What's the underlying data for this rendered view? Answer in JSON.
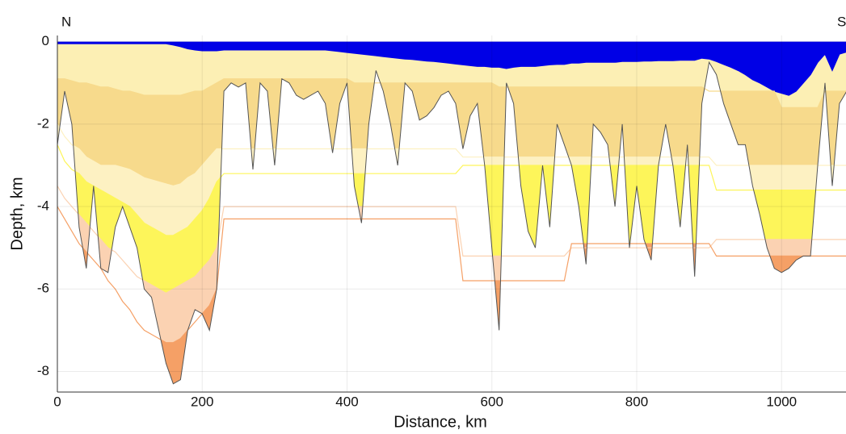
{
  "chart_data": {
    "type": "profile",
    "left_label": "N",
    "right_label": "S",
    "xlabel": "Distance, km",
    "ylabel": "Depth, km",
    "xlim": [
      0,
      1089
    ],
    "ylim": [
      -8.5,
      0.15
    ],
    "xticks": [
      0,
      200,
      400,
      600,
      800,
      1000
    ],
    "yticks": [
      0,
      -2,
      -4,
      -6,
      -8
    ],
    "grid": true,
    "water_color": "#0000e6",
    "x": [
      0,
      10,
      20,
      30,
      40,
      50,
      60,
      70,
      80,
      90,
      100,
      110,
      120,
      130,
      140,
      150,
      160,
      170,
      180,
      190,
      200,
      210,
      220,
      230,
      240,
      250,
      260,
      270,
      280,
      290,
      300,
      310,
      320,
      330,
      340,
      350,
      360,
      370,
      380,
      390,
      400,
      410,
      420,
      430,
      440,
      450,
      460,
      470,
      480,
      490,
      500,
      510,
      520,
      530,
      540,
      550,
      560,
      570,
      580,
      590,
      600,
      610,
      620,
      630,
      640,
      650,
      660,
      670,
      680,
      690,
      700,
      710,
      720,
      730,
      740,
      750,
      760,
      770,
      780,
      790,
      800,
      810,
      820,
      830,
      840,
      850,
      860,
      870,
      880,
      890,
      900,
      910,
      920,
      930,
      940,
      950,
      960,
      970,
      980,
      990,
      1000,
      1010,
      1020,
      1030,
      1040,
      1050,
      1060,
      1070,
      1080,
      1090
    ],
    "series": [
      {
        "color": "#fcefb4",
        "values": [
          -0.05,
          -0.05,
          -0.05,
          -0.05,
          -0.05,
          -0.05,
          -0.05,
          -0.05,
          -0.05,
          -0.05,
          -0.05,
          -0.05,
          -0.05,
          -0.05,
          -0.05,
          -0.05,
          -0.08,
          -0.12,
          -0.17,
          -0.2,
          -0.22,
          -0.22,
          -0.22,
          -0.2,
          -0.2,
          -0.2,
          -0.2,
          -0.2,
          -0.2,
          -0.2,
          -0.2,
          -0.2,
          -0.2,
          -0.2,
          -0.2,
          -0.2,
          -0.2,
          -0.2,
          -0.22,
          -0.24,
          -0.26,
          -0.28,
          -0.3,
          -0.32,
          -0.34,
          -0.36,
          -0.38,
          -0.4,
          -0.42,
          -0.43,
          -0.45,
          -0.47,
          -0.48,
          -0.5,
          -0.52,
          -0.54,
          -0.56,
          -0.58,
          -0.6,
          -0.6,
          -0.62,
          -0.62,
          -0.65,
          -0.62,
          -0.6,
          -0.6,
          -0.6,
          -0.58,
          -0.56,
          -0.55,
          -0.55,
          -0.52,
          -0.52,
          -0.5,
          -0.5,
          -0.5,
          -0.5,
          -0.5,
          -0.48,
          -0.48,
          -0.48,
          -0.47,
          -0.47,
          -0.46,
          -0.46,
          -0.46,
          -0.45,
          -0.45,
          -0.45,
          -0.4,
          -0.42,
          -0.48,
          -0.55,
          -0.62,
          -0.7,
          -0.8,
          -0.92,
          -1.0,
          -1.1,
          -1.2,
          -1.25,
          -1.3,
          -1.2,
          -1.0,
          -0.8,
          -0.5,
          -0.3,
          -0.7,
          -0.3,
          -0.25
        ]
      },
      {
        "color": "#f7da8c",
        "values": [
          -0.9,
          -0.9,
          -0.95,
          -1,
          -1,
          -1.05,
          -1.1,
          -1.1,
          -1.15,
          -1.2,
          -1.2,
          -1.25,
          -1.3,
          -1.3,
          -1.3,
          -1.3,
          -1.3,
          -1.3,
          -1.25,
          -1.2,
          -1.2,
          -1.1,
          -1.0,
          -0.9,
          -0.9,
          -0.9,
          -0.9,
          -0.9,
          -0.9,
          -0.9,
          -0.9,
          -0.9,
          -0.9,
          -0.9,
          -0.9,
          -0.9,
          -0.9,
          -0.9,
          -0.9,
          -0.9,
          -0.9,
          -1.0,
          -1.0,
          -1.0,
          -1.0,
          -1.0,
          -1.0,
          -1.0,
          -1.0,
          -1.0,
          -1.0,
          -1.0,
          -1.0,
          -1.0,
          -1.0,
          -1.0,
          -1.0,
          -1.0,
          -1.0,
          -1.0,
          -1.0,
          -1.1,
          -1.1,
          -1.1,
          -1.1,
          -1.1,
          -1.1,
          -1.1,
          -1.1,
          -1.1,
          -1.1,
          -1.1,
          -1.1,
          -1.1,
          -1.1,
          -1.1,
          -1.1,
          -1.1,
          -1.1,
          -1.1,
          -1.1,
          -1.1,
          -1.1,
          -1.1,
          -1.1,
          -1.1,
          -1.1,
          -1.1,
          -1.1,
          -1.1,
          -1.2,
          -1.2,
          -1.2,
          -1.2,
          -1.2,
          -1.2,
          -1.2,
          -1.2,
          -1.2,
          -1.2,
          -1.6,
          -1.6,
          -1.6,
          -1.6,
          -1.6,
          -1.6,
          -1.2,
          -1.2,
          -1.2,
          -1.2
        ]
      },
      {
        "color": "#fdf1c2",
        "values": [
          -2,
          -2.3,
          -2.5,
          -2.6,
          -2.8,
          -2.9,
          -3,
          -3,
          -3,
          -3.05,
          -3.1,
          -3.2,
          -3.3,
          -3.35,
          -3.4,
          -3.45,
          -3.5,
          -3.45,
          -3.3,
          -3.2,
          -3.0,
          -2.8,
          -2.6,
          -2.6,
          -2.6,
          -2.6,
          -2.6,
          -2.6,
          -2.6,
          -2.6,
          -2.6,
          -2.6,
          -2.6,
          -2.6,
          -2.6,
          -2.6,
          -2.6,
          -2.6,
          -2.6,
          -2.6,
          -2.6,
          -2.6,
          -2.6,
          -2.6,
          -2.6,
          -2.6,
          -2.6,
          -2.6,
          -2.6,
          -2.6,
          -2.6,
          -2.6,
          -2.6,
          -2.6,
          -2.6,
          -2.6,
          -2.8,
          -2.8,
          -2.8,
          -2.8,
          -2.8,
          -2.8,
          -2.8,
          -2.8,
          -2.8,
          -2.8,
          -2.8,
          -2.8,
          -2.8,
          -2.8,
          -2.8,
          -2.8,
          -2.8,
          -2.8,
          -2.8,
          -2.8,
          -2.8,
          -2.8,
          -2.8,
          -2.8,
          -2.8,
          -2.8,
          -2.8,
          -2.8,
          -2.8,
          -2.8,
          -2.8,
          -2.8,
          -2.8,
          -2.8,
          -2.8,
          -3.0,
          -3.0,
          -3.0,
          -3.0,
          -3.0,
          -3.0,
          -3.0,
          -3.0,
          -3.0,
          -3.0,
          -3.0,
          -3.0,
          -3.0,
          -3.0,
          -3.0,
          -3.0,
          -3.0,
          -3.0,
          -3.0
        ]
      },
      {
        "color": "#fdf55a",
        "values": [
          -2.5,
          -2.9,
          -3.1,
          -3.2,
          -3.4,
          -3.5,
          -3.6,
          -3.7,
          -3.8,
          -3.9,
          -4.0,
          -4.2,
          -4.4,
          -4.5,
          -4.6,
          -4.7,
          -4.7,
          -4.6,
          -4.5,
          -4.3,
          -4.1,
          -3.8,
          -3.4,
          -3.2,
          -3.2,
          -3.2,
          -3.2,
          -3.2,
          -3.2,
          -3.2,
          -3.2,
          -3.2,
          -3.2,
          -3.2,
          -3.2,
          -3.2,
          -3.2,
          -3.2,
          -3.2,
          -3.2,
          -3.2,
          -3.2,
          -3.2,
          -3.2,
          -3.2,
          -3.2,
          -3.2,
          -3.2,
          -3.2,
          -3.2,
          -3.2,
          -3.2,
          -3.2,
          -3.2,
          -3.2,
          -3.2,
          -3.0,
          -3.0,
          -3.0,
          -3.0,
          -3.0,
          -3.0,
          -3.0,
          -3.0,
          -3.0,
          -3.0,
          -3.0,
          -3.0,
          -3.0,
          -3.0,
          -3.0,
          -3.0,
          -3.0,
          -3.0,
          -3.0,
          -3.0,
          -3.0,
          -3.0,
          -3.0,
          -3.0,
          -3.0,
          -3.0,
          -3.0,
          -3.0,
          -3.0,
          -3.0,
          -3.0,
          -3.0,
          -3.0,
          -3.0,
          -3.0,
          -3.6,
          -3.6,
          -3.6,
          -3.6,
          -3.6,
          -3.6,
          -3.6,
          -3.6,
          -3.6,
          -3.6,
          -3.6,
          -3.6,
          -3.6,
          -3.6,
          -3.6,
          -3.6,
          -3.6,
          -3.6,
          -3.6
        ]
      },
      {
        "color": "#fbd2b2",
        "values": [
          -3.5,
          -3.8,
          -4.0,
          -4.2,
          -4.4,
          -4.6,
          -4.8,
          -5.0,
          -5.1,
          -5.3,
          -5.5,
          -5.7,
          -5.8,
          -5.9,
          -6.0,
          -6.1,
          -6.0,
          -5.9,
          -5.8,
          -5.7,
          -5.5,
          -5.3,
          -5.0,
          -4.0,
          -4.0,
          -4.0,
          -4.0,
          -4.0,
          -4.0,
          -4.0,
          -4.0,
          -4.0,
          -4.0,
          -4.0,
          -4.0,
          -4.0,
          -4.0,
          -4.0,
          -4.0,
          -4.0,
          -4.0,
          -4.0,
          -4.0,
          -4.0,
          -4.0,
          -4.0,
          -4.0,
          -4.0,
          -4.0,
          -4.0,
          -4.0,
          -4.0,
          -4.0,
          -4.0,
          -4.0,
          -4.0,
          -5.2,
          -5.2,
          -5.2,
          -5.2,
          -5.2,
          -5.2,
          -5.2,
          -5.2,
          -5.2,
          -5.2,
          -5.2,
          -5.2,
          -5.2,
          -5.2,
          -5.2,
          -5.0,
          -5.0,
          -5.0,
          -5.0,
          -5.0,
          -5.0,
          -5.0,
          -5.0,
          -5.0,
          -5.0,
          -5.0,
          -5.0,
          -5.0,
          -5.0,
          -5.0,
          -5.0,
          -5.0,
          -5.0,
          -5.0,
          -5.0,
          -4.8,
          -4.8,
          -4.8,
          -4.8,
          -4.8,
          -4.8,
          -4.8,
          -4.8,
          -4.8,
          -4.8,
          -4.8,
          -4.8,
          -4.8,
          -4.8,
          -4.8,
          -4.8,
          -4.8,
          -4.8,
          -4.8
        ]
      },
      {
        "color": "#f5a066",
        "values": [
          -4.0,
          -4.3,
          -4.6,
          -4.9,
          -5.1,
          -5.3,
          -5.5,
          -5.8,
          -6.0,
          -6.3,
          -6.5,
          -6.8,
          -7.0,
          -7.1,
          -7.2,
          -7.3,
          -7.3,
          -7.2,
          -7.0,
          -6.8,
          -6.6,
          -6.4,
          -6.0,
          -4.3,
          -4.3,
          -4.3,
          -4.3,
          -4.3,
          -4.3,
          -4.3,
          -4.3,
          -4.3,
          -4.3,
          -4.3,
          -4.3,
          -4.3,
          -4.3,
          -4.3,
          -4.3,
          -4.3,
          -4.3,
          -4.3,
          -4.3,
          -4.3,
          -4.3,
          -4.3,
          -4.3,
          -4.3,
          -4.3,
          -4.3,
          -4.3,
          -4.3,
          -4.3,
          -4.3,
          -4.3,
          -4.3,
          -5.8,
          -5.8,
          -5.8,
          -5.8,
          -5.8,
          -5.8,
          -5.8,
          -5.8,
          -5.8,
          -5.8,
          -5.8,
          -5.8,
          -5.8,
          -5.8,
          -5.8,
          -4.9,
          -4.9,
          -4.9,
          -4.9,
          -4.9,
          -4.9,
          -4.9,
          -4.9,
          -4.9,
          -4.9,
          -4.9,
          -4.9,
          -4.9,
          -4.9,
          -4.9,
          -4.9,
          -4.9,
          -4.9,
          -4.9,
          -4.9,
          -5.2,
          -5.2,
          -5.2,
          -5.2,
          -5.2,
          -5.2,
          -5.2,
          -5.2,
          -5.2,
          -5.2,
          -5.2,
          -5.2,
          -5.2,
          -5.2,
          -5.2,
          -5.2,
          -5.2,
          -5.2,
          -5.2
        ]
      },
      {
        "color": "#ffffff",
        "values": [
          -2.5,
          -1.2,
          -2.0,
          -4.5,
          -5.5,
          -3.5,
          -5.5,
          -5.6,
          -4.5,
          -4.0,
          -4.5,
          -5.0,
          -6.0,
          -6.2,
          -7.0,
          -7.8,
          -8.3,
          -8.2,
          -7.0,
          -6.5,
          -6.6,
          -7.0,
          -6.0,
          -1.2,
          -1.0,
          -1.1,
          -1.0,
          -3.1,
          -1.0,
          -1.2,
          -3.0,
          -0.9,
          -1.0,
          -1.3,
          -1.4,
          -1.3,
          -1.2,
          -1.5,
          -2.7,
          -1.5,
          -1.0,
          -3.5,
          -4.4,
          -2.0,
          -0.7,
          -1.2,
          -2.0,
          -3.0,
          -1.0,
          -1.2,
          -1.9,
          -1.8,
          -1.6,
          -1.3,
          -1.2,
          -1.5,
          -2.6,
          -1.8,
          -1.5,
          -3.0,
          -5.0,
          -7.0,
          -1.0,
          -1.5,
          -3.5,
          -4.6,
          -5.0,
          -3.0,
          -4.5,
          -2.0,
          -2.5,
          -3.0,
          -4.0,
          -5.4,
          -2.0,
          -2.2,
          -2.5,
          -4.0,
          -2.0,
          -5.0,
          -3.5,
          -4.8,
          -5.3,
          -3.0,
          -2.0,
          -3.0,
          -4.5,
          -2.5,
          -5.7,
          -1.5,
          -0.5,
          -0.8,
          -1.5,
          -2.0,
          -2.5,
          -2.5,
          -3.5,
          -4.2,
          -5.0,
          -5.5,
          -5.6,
          -5.5,
          -5.3,
          -5.2,
          -5.2,
          -3.0,
          -1.0,
          -3.5,
          -1.5,
          -1.2
        ]
      }
    ]
  }
}
